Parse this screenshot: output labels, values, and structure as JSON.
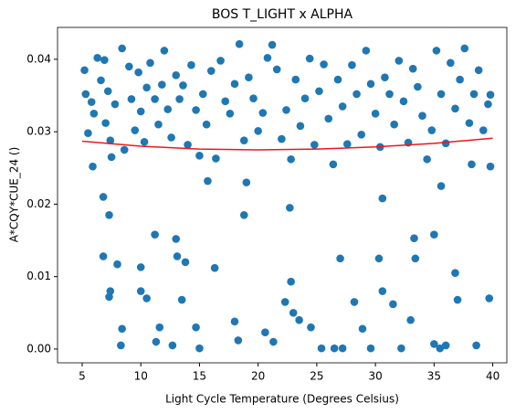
{
  "chart_data": {
    "type": "scatter",
    "title": "BOS T_LIGHT x ALPHA",
    "xlabel": "Light Cycle Temperature (Degrees Celsius)",
    "ylabel": "A*CQY*CUE_24 ()",
    "color": "#1f77b4",
    "x": [
      5.2,
      5.3,
      5.5,
      5.8,
      6.0,
      6.3,
      6.6,
      6.9,
      7.0,
      7.2,
      7.4,
      7.5,
      7.8,
      8.4,
      8.6,
      9.0,
      9.2,
      9.5,
      9.8,
      10.0,
      10.3,
      10.5,
      10.8,
      11.2,
      11.5,
      11.8,
      12.0,
      12.3,
      12.6,
      13.0,
      13.3,
      13.6,
      14.0,
      14.3,
      14.7,
      15.0,
      15.3,
      15.6,
      16.0,
      16.4,
      16.8,
      17.2,
      17.6,
      18.0,
      18.4,
      18.8,
      19.2,
      19.6,
      20.0,
      20.4,
      20.8,
      21.2,
      21.6,
      22.0,
      22.4,
      22.8,
      23.2,
      23.6,
      24.0,
      24.4,
      24.8,
      25.2,
      25.6,
      26.0,
      26.4,
      26.8,
      27.2,
      27.6,
      28.0,
      28.4,
      28.8,
      29.2,
      29.6,
      30.0,
      30.4,
      30.8,
      31.2,
      31.6,
      32.0,
      32.4,
      32.8,
      33.2,
      33.6,
      34.0,
      34.4,
      34.8,
      35.2,
      35.6,
      36.0,
      36.4,
      36.8,
      37.2,
      37.6,
      38.0,
      38.4,
      38.8,
      39.2,
      39.6,
      39.8,
      5.9,
      6.8,
      7.3,
      7.4,
      7.3,
      6.8,
      8.0,
      8.4,
      8.3,
      10.0,
      10.0,
      10.5,
      11.2,
      11.3,
      11.6,
      12.7,
      13.0,
      13.1,
      13.5,
      13.8,
      14.7,
      15.0,
      15.7,
      16.3,
      18.0,
      18.3,
      18.8,
      19.0,
      20.6,
      21.3,
      22.3,
      22.7,
      22.8,
      23.0,
      23.5,
      24.5,
      25.4,
      26.5,
      27.0,
      27.2,
      28.2,
      28.9,
      29.6,
      30.3,
      30.6,
      30.6,
      31.5,
      32.2,
      33.0,
      33.3,
      33.4,
      35.0,
      35.0,
      35.5,
      36.0,
      36.8,
      37.0,
      38.6,
      39.7,
      39.8,
      35.6,
      38.2
    ],
    "values": [
      0.0385,
      0.0352,
      0.0298,
      0.0341,
      0.0325,
      0.0402,
      0.0371,
      0.0399,
      0.0312,
      0.0356,
      0.0288,
      0.0265,
      0.0338,
      0.0415,
      0.0275,
      0.039,
      0.0345,
      0.0302,
      0.0382,
      0.0328,
      0.0286,
      0.0361,
      0.0395,
      0.0345,
      0.031,
      0.0365,
      0.0412,
      0.0331,
      0.0292,
      0.0378,
      0.0345,
      0.0364,
      0.0282,
      0.0392,
      0.033,
      0.0267,
      0.0352,
      0.031,
      0.0384,
      0.0263,
      0.0398,
      0.0342,
      0.0325,
      0.0366,
      0.0421,
      0.0288,
      0.0375,
      0.0346,
      0.0301,
      0.0326,
      0.0402,
      0.042,
      0.0386,
      0.029,
      0.033,
      0.0262,
      0.0372,
      0.0308,
      0.0346,
      0.0401,
      0.0282,
      0.0356,
      0.0393,
      0.0318,
      0.0255,
      0.0372,
      0.0335,
      0.0283,
      0.0392,
      0.0352,
      0.0296,
      0.0412,
      0.0366,
      0.0325,
      0.0279,
      0.0375,
      0.0352,
      0.031,
      0.0398,
      0.0342,
      0.0285,
      0.0387,
      0.0362,
      0.0322,
      0.0262,
      0.0302,
      0.0412,
      0.0352,
      0.0284,
      0.0395,
      0.0332,
      0.0372,
      0.0415,
      0.0312,
      0.0352,
      0.0385,
      0.0302,
      0.0338,
      0.0351,
      0.0252,
      0.021,
      0.0185,
      0.008,
      0.0072,
      0.0128,
      0.0117,
      0.0028,
      0.0005,
      0.0113,
      0.008,
      0.007,
      0.0158,
      0.001,
      0.003,
      0.0005,
      0.0152,
      0.0128,
      0.0068,
      0.012,
      0.003,
      0.0001,
      0.0232,
      0.0112,
      0.0038,
      0.0012,
      0.0185,
      0.023,
      0.0023,
      0.001,
      0.0065,
      0.0195,
      0.0093,
      0.005,
      0.004,
      0.003,
      0.0001,
      0.0001,
      0.0125,
      0.0001,
      0.0065,
      0.0028,
      0.0001,
      0.0125,
      0.008,
      0.0208,
      0.0062,
      0.0001,
      0.004,
      0.0153,
      0.0125,
      0.0158,
      0.0007,
      0.0001,
      0.0005,
      0.0105,
      0.0068,
      0.0005,
      0.007,
      0.0252,
      0.0225,
      0.0255
    ],
    "fit_line": {
      "color": "#e8191c",
      "x": [
        5,
        10,
        15,
        20,
        25,
        30,
        35,
        40
      ],
      "values": [
        0.0287,
        0.028,
        0.0276,
        0.0275,
        0.0276,
        0.0279,
        0.0284,
        0.0291
      ]
    },
    "xlim": [
      2.9,
      41.2
    ],
    "xticks": [
      5,
      10,
      15,
      20,
      25,
      30,
      35,
      40
    ],
    "ylim": [
      -0.0019,
      0.0444
    ],
    "yticks": [
      {
        "value": 0,
        "label": "0.00"
      },
      0.01,
      0.02,
      0.03,
      0.04
    ]
  }
}
